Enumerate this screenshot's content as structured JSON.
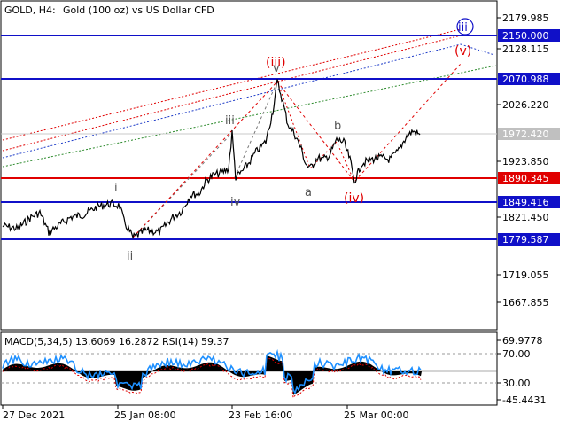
{
  "header": {
    "symbol_timeframe": "GOLD, H4:",
    "description": "Gold (100 oz) vs US Dollar CFD"
  },
  "price_axis": {
    "ticks": [
      "2179.985",
      "2128.115",
      "2026.220",
      "1923.850",
      "1821.450",
      "1719.055",
      "1667.855"
    ]
  },
  "levels": [
    {
      "price": "2150.000",
      "color": "#1010c8"
    },
    {
      "price": "2070.988",
      "color": "#1010c8"
    },
    {
      "price": "1972.420",
      "color": "#b0b0b0"
    },
    {
      "price": "1890.345",
      "color": "#e00000"
    },
    {
      "price": "1849.416",
      "color": "#1010c8"
    },
    {
      "price": "1779.587",
      "color": "#1010c8"
    }
  ],
  "wave_labels": {
    "i": "i",
    "ii": "ii",
    "iii": "iii",
    "iv": "iv",
    "v": "v",
    "a": "a",
    "b": "b",
    "iii_circled": "(iii)",
    "iv_circled": "(iv)",
    "v_circled": "(v)",
    "iii_big": "iii"
  },
  "indicator": {
    "title": "MACD(5,34,5) 13.6069 16.2872 RSI(14) 59.37",
    "ticks": [
      "69.9778",
      "70.00",
      "30.00",
      "-45.4431"
    ]
  },
  "time_axis": {
    "labels": [
      "27 Dec 2021",
      "25 Jan 08:00",
      "23 Feb 16:00",
      "25 Mar 00:00"
    ]
  },
  "colors": {
    "price_line": "#000000",
    "support_blue": "#1010c8",
    "level_red": "#e00000",
    "wave_red": "#e00000",
    "rsi": "#1e90ff",
    "macd_fill": "#000000",
    "macd_signal": "#e00000",
    "channel_green": "#2e8b2e",
    "channel_blue": "#1e3cc8"
  }
}
